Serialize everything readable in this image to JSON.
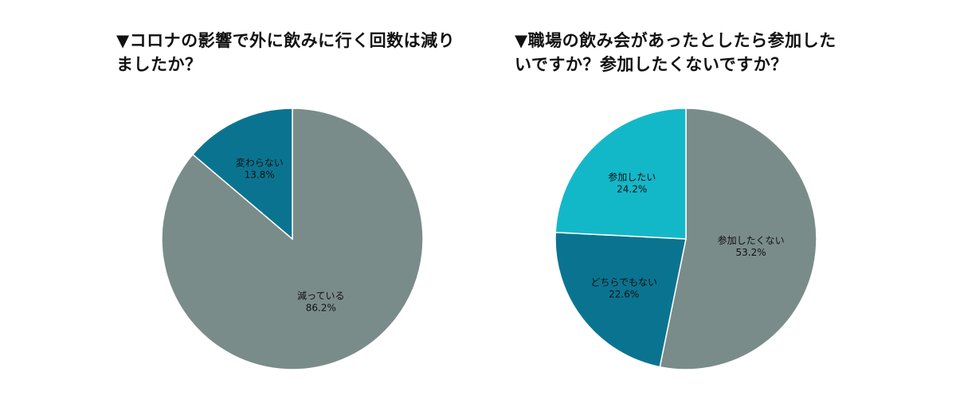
{
  "colors": {
    "gray": "#7a8c8a",
    "teal_dark": "#0a7490",
    "teal_light": "#13b8c8",
    "slice_border": "#ffffff"
  },
  "chart_data": [
    {
      "type": "pie",
      "title": "▼コロナの影響で外に飲みに行く回数は減りましたか？",
      "slices": [
        {
          "label": "減っている",
          "value": 86.2,
          "value_text": "86.2%",
          "color": "#7a8c8a"
        },
        {
          "label": "変わらない",
          "value": 13.8,
          "value_text": "13.8%",
          "color": "#0a7490"
        }
      ],
      "start": "12 o'clock",
      "direction": "clockwise"
    },
    {
      "type": "pie",
      "title": "▼職場の飲み会があったとしたら参加したいですか？参加したくないですか？",
      "slices": [
        {
          "label": "参加したくない",
          "value": 53.2,
          "value_text": "53.2%",
          "color": "#7a8c8a"
        },
        {
          "label": "どちらでもない",
          "value": 22.6,
          "value_text": "22.6%",
          "color": "#0a7490"
        },
        {
          "label": "参加したい",
          "value": 24.2,
          "value_text": "24.2%",
          "color": "#13b8c8"
        }
      ],
      "start": "12 o'clock",
      "direction": "clockwise"
    }
  ]
}
